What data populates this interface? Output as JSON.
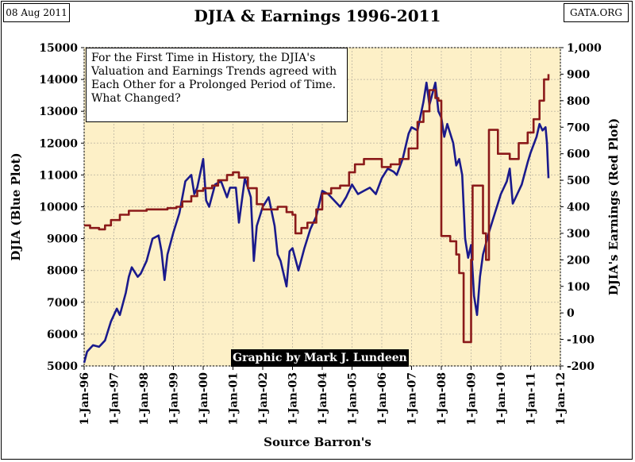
{
  "header": {
    "date": "08 Aug 2011",
    "source": "GATA.ORG"
  },
  "chart_data": {
    "type": "line",
    "title": "DJIA & Earnings 1996-2011",
    "xlabel": "Source Barron's",
    "ylabel": "DJIA (Blue Plot)",
    "y2label": "DJIA's Earnings (Red Plot)",
    "ylim": [
      5000,
      15000
    ],
    "y2lim": [
      -200,
      1000
    ],
    "yticks": [
      "5000",
      "6000",
      "7000",
      "8000",
      "9000",
      "10000",
      "11000",
      "12000",
      "13000",
      "14000",
      "15000"
    ],
    "y2ticks": [
      "-200",
      "-100",
      "0",
      "100",
      "200",
      "300",
      "400",
      "500",
      "600",
      "700",
      "800",
      "900",
      "1,000"
    ],
    "xticks": [
      "1-Jan-96",
      "1-Jan-97",
      "1-Jan-98",
      "1-Jan-99",
      "1-Jan-00",
      "1-Jan-01",
      "1-Jan-02",
      "1-Jan-03",
      "1-Jan-04",
      "1-Jan-05",
      "1-Jan-06",
      "1-Jan-07",
      "1-Jan-08",
      "1-Jan-09",
      "1-Jan-10",
      "1-Jan-11",
      "1-Jan-12"
    ],
    "xrange": [
      1996.0,
      2012.0
    ],
    "annotation": "For the First Time in History, the DJIA's Valuation and Earnings Trends agreed with Each Other for a Prolonged Period of Time. What Changed?",
    "credit": "Graphic by Mark J. Lundeen",
    "series": [
      {
        "name": "DJIA",
        "axis": "left",
        "color": "#1a1a8c",
        "points": [
          [
            1996.0,
            5100
          ],
          [
            1996.1,
            5450
          ],
          [
            1996.3,
            5650
          ],
          [
            1996.5,
            5600
          ],
          [
            1996.7,
            5800
          ],
          [
            1996.9,
            6400
          ],
          [
            1997.1,
            6800
          ],
          [
            1997.2,
            6600
          ],
          [
            1997.4,
            7300
          ],
          [
            1997.5,
            7800
          ],
          [
            1997.6,
            8100
          ],
          [
            1997.8,
            7800
          ],
          [
            1997.9,
            7900
          ],
          [
            1998.1,
            8300
          ],
          [
            1998.3,
            9000
          ],
          [
            1998.5,
            9100
          ],
          [
            1998.6,
            8600
          ],
          [
            1998.7,
            7700
          ],
          [
            1998.8,
            8500
          ],
          [
            1999.0,
            9200
          ],
          [
            1999.2,
            9800
          ],
          [
            1999.4,
            10800
          ],
          [
            1999.6,
            11000
          ],
          [
            1999.7,
            10400
          ],
          [
            1999.8,
            10600
          ],
          [
            2000.0,
            11500
          ],
          [
            2000.1,
            10200
          ],
          [
            2000.2,
            10000
          ],
          [
            2000.4,
            10700
          ],
          [
            2000.6,
            10800
          ],
          [
            2000.8,
            10300
          ],
          [
            2000.9,
            10600
          ],
          [
            2001.1,
            10600
          ],
          [
            2001.2,
            9500
          ],
          [
            2001.4,
            10900
          ],
          [
            2001.6,
            10300
          ],
          [
            2001.7,
            8300
          ],
          [
            2001.8,
            9400
          ],
          [
            2002.0,
            10000
          ],
          [
            2002.2,
            10300
          ],
          [
            2002.4,
            9400
          ],
          [
            2002.5,
            8500
          ],
          [
            2002.6,
            8300
          ],
          [
            2002.8,
            7500
          ],
          [
            2002.9,
            8600
          ],
          [
            2003.0,
            8700
          ],
          [
            2003.2,
            8000
          ],
          [
            2003.4,
            8700
          ],
          [
            2003.6,
            9300
          ],
          [
            2003.8,
            9700
          ],
          [
            2004.0,
            10500
          ],
          [
            2004.2,
            10400
          ],
          [
            2004.4,
            10200
          ],
          [
            2004.6,
            10000
          ],
          [
            2004.8,
            10300
          ],
          [
            2005.0,
            10700
          ],
          [
            2005.2,
            10400
          ],
          [
            2005.4,
            10500
          ],
          [
            2005.6,
            10600
          ],
          [
            2005.8,
            10400
          ],
          [
            2006.0,
            10900
          ],
          [
            2006.2,
            11200
          ],
          [
            2006.4,
            11100
          ],
          [
            2006.5,
            11000
          ],
          [
            2006.7,
            11500
          ],
          [
            2006.9,
            12300
          ],
          [
            2007.0,
            12500
          ],
          [
            2007.2,
            12400
          ],
          [
            2007.4,
            13300
          ],
          [
            2007.5,
            13900
          ],
          [
            2007.6,
            13200
          ],
          [
            2007.8,
            13900
          ],
          [
            2007.9,
            13000
          ],
          [
            2008.0,
            12800
          ],
          [
            2008.1,
            12200
          ],
          [
            2008.2,
            12600
          ],
          [
            2008.4,
            12000
          ],
          [
            2008.5,
            11300
          ],
          [
            2008.6,
            11500
          ],
          [
            2008.7,
            11000
          ],
          [
            2008.8,
            9000
          ],
          [
            2008.9,
            8400
          ],
          [
            2009.0,
            8800
          ],
          [
            2009.1,
            7200
          ],
          [
            2009.2,
            6600
          ],
          [
            2009.3,
            7800
          ],
          [
            2009.4,
            8500
          ],
          [
            2009.6,
            9200
          ],
          [
            2009.8,
            9800
          ],
          [
            2010.0,
            10400
          ],
          [
            2010.2,
            10800
          ],
          [
            2010.3,
            11200
          ],
          [
            2010.4,
            10100
          ],
          [
            2010.5,
            10300
          ],
          [
            2010.7,
            10700
          ],
          [
            2010.9,
            11400
          ],
          [
            2011.0,
            11700
          ],
          [
            2011.2,
            12200
          ],
          [
            2011.3,
            12600
          ],
          [
            2011.4,
            12400
          ],
          [
            2011.5,
            12500
          ],
          [
            2011.55,
            12000
          ],
          [
            2011.6,
            10900
          ]
        ]
      },
      {
        "name": "Earnings",
        "axis": "right",
        "color": "#8b1a1a",
        "points": [
          [
            1996.0,
            330
          ],
          [
            1996.2,
            320
          ],
          [
            1996.5,
            315
          ],
          [
            1996.7,
            330
          ],
          [
            1996.9,
            350
          ],
          [
            1997.2,
            370
          ],
          [
            1997.5,
            385
          ],
          [
            1997.8,
            385
          ],
          [
            1998.1,
            390
          ],
          [
            1998.5,
            390
          ],
          [
            1998.8,
            395
          ],
          [
            1999.1,
            400
          ],
          [
            1999.3,
            420
          ],
          [
            1999.6,
            440
          ],
          [
            1999.8,
            460
          ],
          [
            2000.0,
            470
          ],
          [
            2000.3,
            480
          ],
          [
            2000.5,
            500
          ],
          [
            2000.8,
            520
          ],
          [
            2001.0,
            530
          ],
          [
            2001.2,
            510
          ],
          [
            2001.5,
            470
          ],
          [
            2001.8,
            410
          ],
          [
            2002.0,
            390
          ],
          [
            2002.2,
            390
          ],
          [
            2002.5,
            400
          ],
          [
            2002.8,
            380
          ],
          [
            2003.0,
            370
          ],
          [
            2003.1,
            300
          ],
          [
            2003.3,
            320
          ],
          [
            2003.5,
            340
          ],
          [
            2003.8,
            390
          ],
          [
            2004.0,
            450
          ],
          [
            2004.3,
            470
          ],
          [
            2004.6,
            480
          ],
          [
            2004.9,
            530
          ],
          [
            2005.1,
            560
          ],
          [
            2005.4,
            580
          ],
          [
            2005.7,
            580
          ],
          [
            2006.0,
            550
          ],
          [
            2006.3,
            560
          ],
          [
            2006.6,
            580
          ],
          [
            2006.9,
            620
          ],
          [
            2007.2,
            720
          ],
          [
            2007.4,
            760
          ],
          [
            2007.6,
            840
          ],
          [
            2007.8,
            810
          ],
          [
            2007.9,
            800
          ],
          [
            2008.0,
            290
          ],
          [
            2008.3,
            270
          ],
          [
            2008.5,
            220
          ],
          [
            2008.6,
            150
          ],
          [
            2008.7,
            150
          ],
          [
            2008.75,
            -110
          ],
          [
            2008.9,
            -110
          ],
          [
            2009.0,
            200
          ],
          [
            2009.05,
            480
          ],
          [
            2009.3,
            480
          ],
          [
            2009.4,
            300
          ],
          [
            2009.5,
            200
          ],
          [
            2009.6,
            690
          ],
          [
            2009.9,
            600
          ],
          [
            2010.1,
            600
          ],
          [
            2010.3,
            580
          ],
          [
            2010.6,
            640
          ],
          [
            2010.9,
            680
          ],
          [
            2011.1,
            730
          ],
          [
            2011.3,
            800
          ],
          [
            2011.45,
            880
          ],
          [
            2011.55,
            880
          ],
          [
            2011.6,
            900
          ]
        ]
      }
    ]
  }
}
